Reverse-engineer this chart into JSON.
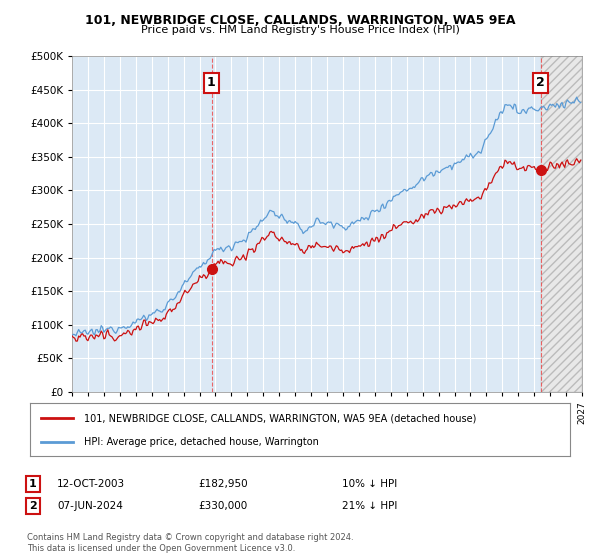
{
  "title": "101, NEWBRIDGE CLOSE, CALLANDS, WARRINGTON, WA5 9EA",
  "subtitle": "Price paid vs. HM Land Registry's House Price Index (HPI)",
  "legend_line1": "101, NEWBRIDGE CLOSE, CALLANDS, WARRINGTON, WA5 9EA (detached house)",
  "legend_line2": "HPI: Average price, detached house, Warrington",
  "transaction1_date": "12-OCT-2003",
  "transaction1_price": "£182,950",
  "transaction1_hpi": "10% ↓ HPI",
  "transaction2_date": "07-JUN-2024",
  "transaction2_price": "£330,000",
  "transaction2_hpi": "21% ↓ HPI",
  "footnote": "Contains HM Land Registry data © Crown copyright and database right 2024.\nThis data is licensed under the Open Government Licence v3.0.",
  "hpi_color": "#5b9bd5",
  "price_color": "#cc1111",
  "marker_color": "#cc1111",
  "vline_color": "#ee4444",
  "transaction1_x": 2003.79,
  "transaction2_x": 2024.44,
  "transaction1_y": 182950,
  "transaction2_y": 330000,
  "xmin": 1995,
  "xmax": 2027,
  "ymin": 0,
  "ymax": 500000,
  "yticks": [
    0,
    50000,
    100000,
    150000,
    200000,
    250000,
    300000,
    350000,
    400000,
    450000,
    500000
  ],
  "plot_bg_color": "#dce9f5",
  "background_color": "#ffffff",
  "grid_color": "#ffffff",
  "hatch_color": "#c0c0c0"
}
